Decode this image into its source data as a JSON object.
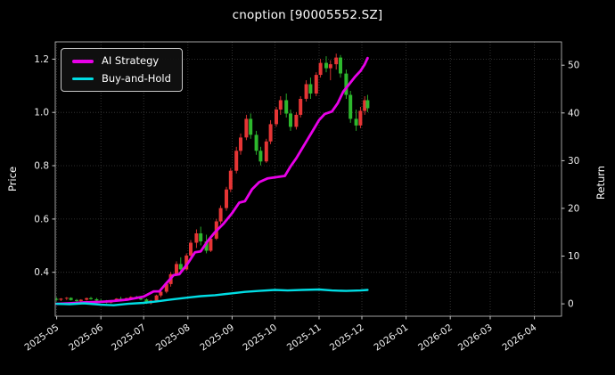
{
  "title": "cnoption [90005552.SZ]",
  "legend": {
    "items": [
      {
        "label": "AI Strategy",
        "color": "#e800e8"
      },
      {
        "label": "Buy-and-Hold",
        "color": "#00dde4"
      }
    ]
  },
  "colors": {
    "background": "#000000",
    "text": "#ffffff",
    "tick_text": "#f0f0f0",
    "spine": "#c8c8c8",
    "grid": "#3d3d3d"
  },
  "chart_data": {
    "type": "candlestick",
    "title": "cnoption [90005552.SZ]",
    "grid": true,
    "legend_position": "upper left",
    "x_axis": {
      "domain": [
        "2025-04-30",
        "2026-04-20"
      ],
      "label_rotation": -35,
      "ticks": [
        {
          "date": "2025-05-01",
          "label": "2025-05"
        },
        {
          "date": "2025-06-01",
          "label": "2025-06"
        },
        {
          "date": "2025-07-01",
          "label": "2025-07"
        },
        {
          "date": "2025-08-01",
          "label": "2025-08"
        },
        {
          "date": "2025-09-01",
          "label": "2025-09"
        },
        {
          "date": "2025-10-01",
          "label": "2025-10"
        },
        {
          "date": "2025-11-01",
          "label": "2025-11"
        },
        {
          "date": "2025-12-01",
          "label": "2025-12"
        },
        {
          "date": "2026-01-01",
          "label": "2026-01"
        },
        {
          "date": "2026-02-01",
          "label": "2026-02"
        },
        {
          "date": "2026-03-01",
          "label": "2026-03"
        },
        {
          "date": "2026-04-01",
          "label": "2026-04"
        }
      ]
    },
    "left_axis": {
      "label": "Price",
      "ylim": [
        0.235,
        1.265
      ],
      "ticks": [
        0.4,
        0.6,
        0.8,
        1.0,
        1.2
      ],
      "tick_labels": [
        "0.4",
        "0.6",
        "0.8",
        "1.0",
        "1.2"
      ]
    },
    "right_axis": {
      "label": "Return",
      "ylim": [
        -2.6,
        54.9
      ],
      "ticks": [
        0,
        10,
        20,
        30,
        40,
        50
      ],
      "tick_labels": [
        "0",
        "10",
        "20",
        "30",
        "40",
        "50"
      ]
    },
    "candles": {
      "up_color": "#e63535",
      "down_color": "#2db82d",
      "columns": [
        "date",
        "open",
        "high",
        "low",
        "close"
      ],
      "data": [
        [
          "2025-05-01",
          0.3,
          0.306,
          0.293,
          0.297
        ],
        [
          "2025-05-04",
          0.297,
          0.303,
          0.292,
          0.301
        ],
        [
          "2025-05-08",
          0.301,
          0.307,
          0.296,
          0.304
        ],
        [
          "2025-05-11",
          0.304,
          0.306,
          0.294,
          0.296
        ],
        [
          "2025-05-15",
          0.296,
          0.3,
          0.289,
          0.292
        ],
        [
          "2025-05-18",
          0.292,
          0.299,
          0.288,
          0.297
        ],
        [
          "2025-05-22",
          0.297,
          0.305,
          0.294,
          0.303
        ],
        [
          "2025-05-25",
          0.303,
          0.308,
          0.297,
          0.299
        ],
        [
          "2025-05-29",
          0.299,
          0.304,
          0.292,
          0.294
        ],
        [
          "2025-06-01",
          0.294,
          0.3,
          0.288,
          0.291
        ],
        [
          "2025-06-05",
          0.291,
          0.296,
          0.283,
          0.286
        ],
        [
          "2025-06-08",
          0.286,
          0.294,
          0.283,
          0.292
        ],
        [
          "2025-06-12",
          0.292,
          0.303,
          0.29,
          0.301
        ],
        [
          "2025-06-15",
          0.301,
          0.308,
          0.295,
          0.297
        ],
        [
          "2025-06-19",
          0.297,
          0.305,
          0.294,
          0.303
        ],
        [
          "2025-06-22",
          0.303,
          0.31,
          0.299,
          0.307
        ],
        [
          "2025-06-26",
          0.307,
          0.312,
          0.3,
          0.302
        ],
        [
          "2025-06-29",
          0.302,
          0.308,
          0.295,
          0.298
        ],
        [
          "2025-07-03",
          0.298,
          0.302,
          0.281,
          0.284
        ],
        [
          "2025-07-06",
          0.284,
          0.296,
          0.279,
          0.294
        ],
        [
          "2025-07-10",
          0.294,
          0.316,
          0.292,
          0.313
        ],
        [
          "2025-07-13",
          0.313,
          0.331,
          0.306,
          0.327
        ],
        [
          "2025-07-17",
          0.327,
          0.361,
          0.321,
          0.356
        ],
        [
          "2025-07-20",
          0.356,
          0.401,
          0.346,
          0.393
        ],
        [
          "2025-07-24",
          0.393,
          0.441,
          0.386,
          0.431
        ],
        [
          "2025-07-27",
          0.431,
          0.456,
          0.401,
          0.411
        ],
        [
          "2025-07-31",
          0.411,
          0.471,
          0.406,
          0.463
        ],
        [
          "2025-08-03",
          0.463,
          0.521,
          0.456,
          0.511
        ],
        [
          "2025-08-07",
          0.511,
          0.561,
          0.491,
          0.546
        ],
        [
          "2025-08-10",
          0.546,
          0.571,
          0.501,
          0.516
        ],
        [
          "2025-08-14",
          0.516,
          0.541,
          0.471,
          0.481
        ],
        [
          "2025-08-17",
          0.481,
          0.531,
          0.476,
          0.526
        ],
        [
          "2025-08-21",
          0.526,
          0.601,
          0.521,
          0.591
        ],
        [
          "2025-08-24",
          0.591,
          0.651,
          0.581,
          0.641
        ],
        [
          "2025-08-28",
          0.641,
          0.721,
          0.631,
          0.711
        ],
        [
          "2025-08-31",
          0.711,
          0.791,
          0.701,
          0.781
        ],
        [
          "2025-09-04",
          0.781,
          0.871,
          0.771,
          0.856
        ],
        [
          "2025-09-07",
          0.856,
          0.921,
          0.841,
          0.906
        ],
        [
          "2025-09-11",
          0.906,
          0.991,
          0.896,
          0.976
        ],
        [
          "2025-09-14",
          0.976,
          0.996,
          0.901,
          0.916
        ],
        [
          "2025-09-18",
          0.916,
          0.931,
          0.841,
          0.856
        ],
        [
          "2025-09-21",
          0.856,
          0.871,
          0.801,
          0.816
        ],
        [
          "2025-09-25",
          0.816,
          0.901,
          0.811,
          0.891
        ],
        [
          "2025-09-28",
          0.891,
          0.971,
          0.881,
          0.956
        ],
        [
          "2025-10-02",
          0.956,
          1.021,
          0.946,
          1.011
        ],
        [
          "2025-10-05",
          1.011,
          1.061,
          0.991,
          1.046
        ],
        [
          "2025-10-09",
          1.046,
          1.071,
          0.981,
          0.996
        ],
        [
          "2025-10-12",
          0.996,
          1.011,
          0.931,
          0.946
        ],
        [
          "2025-10-16",
          0.946,
          1.001,
          0.936,
          0.991
        ],
        [
          "2025-10-19",
          0.991,
          1.061,
          0.981,
          1.051
        ],
        [
          "2025-10-23",
          1.051,
          1.121,
          1.041,
          1.106
        ],
        [
          "2025-10-26",
          1.106,
          1.131,
          1.051,
          1.071
        ],
        [
          "2025-10-30",
          1.071,
          1.151,
          1.061,
          1.141
        ],
        [
          "2025-11-02",
          1.141,
          1.201,
          1.131,
          1.186
        ],
        [
          "2025-11-06",
          1.186,
          1.211,
          1.151,
          1.166
        ],
        [
          "2025-11-09",
          1.166,
          1.196,
          1.121,
          1.181
        ],
        [
          "2025-11-13",
          1.181,
          1.221,
          1.161,
          1.206
        ],
        [
          "2025-11-16",
          1.206,
          1.216,
          1.131,
          1.146
        ],
        [
          "2025-11-20",
          1.146,
          1.161,
          1.051,
          1.066
        ],
        [
          "2025-11-23",
          1.066,
          1.081,
          0.961,
          0.976
        ],
        [
          "2025-11-27",
          0.976,
          1.011,
          0.931,
          0.951
        ],
        [
          "2025-11-30",
          0.951,
          1.021,
          0.941,
          1.006
        ],
        [
          "2025-12-03",
          1.006,
          1.061,
          0.991,
          1.046
        ],
        [
          "2025-12-05",
          1.046,
          1.066,
          1.001,
          1.016
        ]
      ]
    },
    "series": [
      {
        "name": "AI Strategy",
        "axis": "right",
        "color": "#e800e8",
        "width": 2.8,
        "points": [
          [
            "2025-05-01",
            0.0
          ],
          [
            "2025-05-10",
            0.1
          ],
          [
            "2025-05-20",
            0.3
          ],
          [
            "2025-06-01",
            0.4
          ],
          [
            "2025-06-10",
            0.6
          ],
          [
            "2025-06-20",
            0.9
          ],
          [
            "2025-07-01",
            1.5
          ],
          [
            "2025-07-08",
            2.6
          ],
          [
            "2025-07-12",
            2.6
          ],
          [
            "2025-07-16",
            4.0
          ],
          [
            "2025-07-22",
            6.0
          ],
          [
            "2025-07-26",
            6.2
          ],
          [
            "2025-08-01",
            8.5
          ],
          [
            "2025-08-06",
            10.8
          ],
          [
            "2025-08-10",
            11.0
          ],
          [
            "2025-08-15",
            13.2
          ],
          [
            "2025-08-20",
            15.0
          ],
          [
            "2025-08-26",
            16.8
          ],
          [
            "2025-09-01",
            19.0
          ],
          [
            "2025-09-06",
            21.2
          ],
          [
            "2025-09-10",
            21.5
          ],
          [
            "2025-09-15",
            24.0
          ],
          [
            "2025-09-20",
            25.5
          ],
          [
            "2025-09-26",
            26.3
          ],
          [
            "2025-10-01",
            26.5
          ],
          [
            "2025-10-08",
            26.8
          ],
          [
            "2025-10-12",
            28.8
          ],
          [
            "2025-10-16",
            30.5
          ],
          [
            "2025-10-20",
            32.5
          ],
          [
            "2025-10-24",
            34.5
          ],
          [
            "2025-10-28",
            36.5
          ],
          [
            "2025-11-01",
            38.5
          ],
          [
            "2025-11-05",
            39.8
          ],
          [
            "2025-11-10",
            40.3
          ],
          [
            "2025-11-14",
            42.0
          ],
          [
            "2025-11-18",
            44.5
          ],
          [
            "2025-11-22",
            46.0
          ],
          [
            "2025-11-26",
            47.5
          ],
          [
            "2025-11-30",
            48.8
          ],
          [
            "2025-12-03",
            50.2
          ],
          [
            "2025-12-05",
            51.5
          ]
        ]
      },
      {
        "name": "Buy-and-Hold",
        "axis": "right",
        "color": "#00dde4",
        "width": 2.4,
        "points": [
          [
            "2025-05-01",
            0.0
          ],
          [
            "2025-05-10",
            -0.1
          ],
          [
            "2025-05-20",
            0.1
          ],
          [
            "2025-06-01",
            -0.2
          ],
          [
            "2025-06-10",
            -0.3
          ],
          [
            "2025-06-20",
            0.0
          ],
          [
            "2025-07-01",
            0.2
          ],
          [
            "2025-07-10",
            0.5
          ],
          [
            "2025-07-20",
            0.9
          ],
          [
            "2025-08-01",
            1.3
          ],
          [
            "2025-08-10",
            1.6
          ],
          [
            "2025-08-20",
            1.8
          ],
          [
            "2025-09-01",
            2.2
          ],
          [
            "2025-09-10",
            2.5
          ],
          [
            "2025-09-20",
            2.7
          ],
          [
            "2025-10-01",
            2.9
          ],
          [
            "2025-10-10",
            2.8
          ],
          [
            "2025-10-20",
            2.9
          ],
          [
            "2025-11-01",
            3.0
          ],
          [
            "2025-11-10",
            2.8
          ],
          [
            "2025-11-20",
            2.7
          ],
          [
            "2025-11-30",
            2.8
          ],
          [
            "2025-12-05",
            2.9
          ]
        ]
      }
    ]
  }
}
